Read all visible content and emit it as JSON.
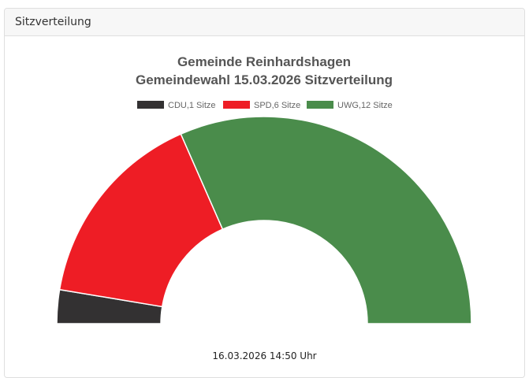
{
  "card": {
    "header": "Sitzverteilung"
  },
  "footer": {
    "timestamp": "16.03.2026 14:50 Uhr"
  },
  "chart_data": {
    "type": "pie",
    "variant": "half-doughnut (parliament seat distribution)",
    "title": [
      "Gemeinde Reinhardshagen",
      "Gemeindewahl 15.03.2026 Sitzverteilung"
    ],
    "legend_position": "top",
    "series": [
      {
        "name": "CDU",
        "label": "CDU,1 Sitze",
        "value": 1,
        "color": "#333132"
      },
      {
        "name": "SPD",
        "label": "SPD,6 Sitze",
        "value": 6,
        "color": "#ee1d25"
      },
      {
        "name": "UWG",
        "label": "UWG,12 Sitze",
        "value": 12,
        "color": "#4a8c4b"
      }
    ],
    "total": 19
  }
}
